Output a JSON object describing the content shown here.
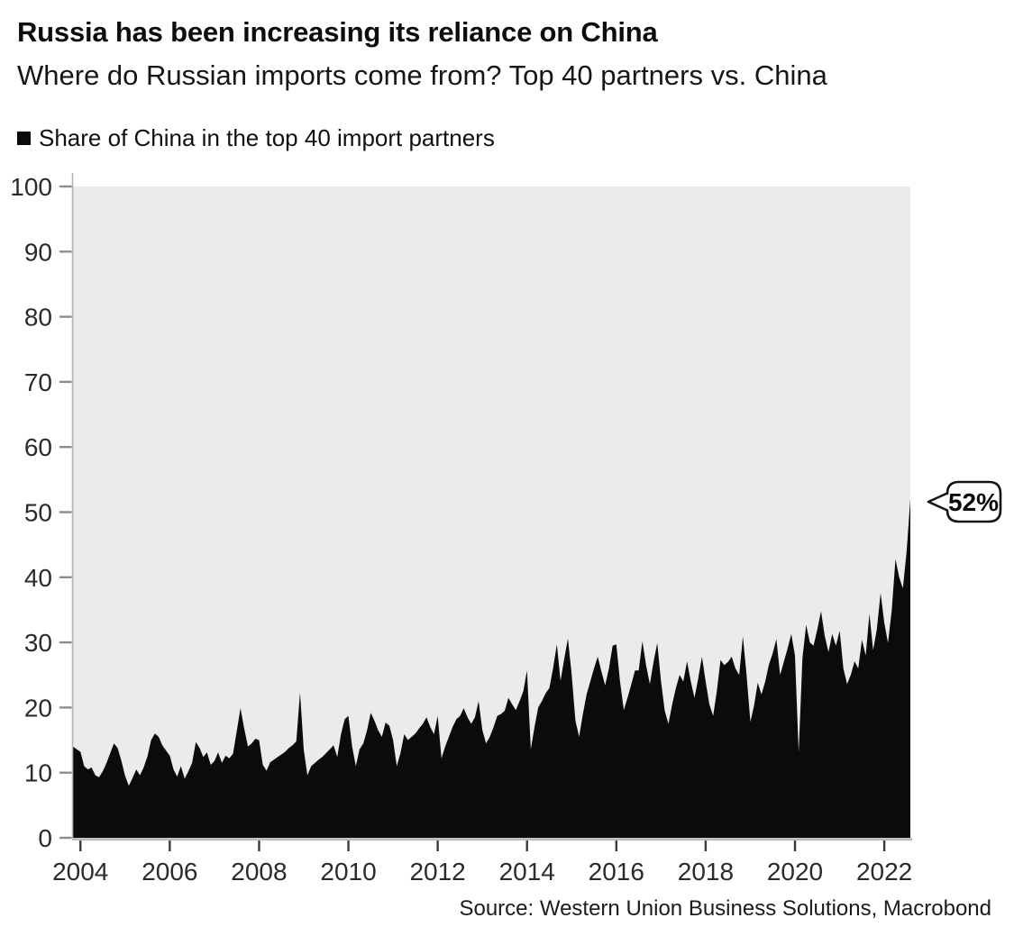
{
  "header": {
    "title": "Russia has been increasing its reliance on China",
    "subtitle": "Where do Russian imports come from? Top 40 partners vs. China"
  },
  "legend": {
    "label": "Share of China in the top 40 import partners"
  },
  "callout": {
    "value": "52%"
  },
  "source": {
    "text": "Source: Western Union Business Solutions, Macrobond"
  },
  "chart_data": {
    "type": "area",
    "title": "Russia has been increasing its reliance on China",
    "subtitle": "Where do Russian imports come from? Top 40 partners vs. China",
    "xlabel": "",
    "ylabel": "",
    "unit": "%",
    "ylim": [
      0,
      100
    ],
    "yticks": [
      0,
      10,
      20,
      30,
      40,
      50,
      60,
      70,
      80,
      90,
      100
    ],
    "xticks": [
      2004,
      2006,
      2008,
      2010,
      2012,
      2014,
      2016,
      2018,
      2020,
      2022
    ],
    "grid": false,
    "legend_position": "top-left",
    "plot_bg_color": "#ebebeb",
    "area_color": "#0b0b0b",
    "annotation": {
      "text": "52%",
      "at": "2022-08"
    },
    "series": [
      {
        "name": "Share of China in the top 40 import partners",
        "start": "2003-11",
        "end": "2022-08",
        "frequency": "monthly",
        "values": [
          14.0,
          13.6,
          13.2,
          11.0,
          10.5,
          10.8,
          9.6,
          9.3,
          10.2,
          11.5,
          13.0,
          14.5,
          13.8,
          11.8,
          9.5,
          8.0,
          9.2,
          10.5,
          9.6,
          10.8,
          12.5,
          15.0,
          16.0,
          15.5,
          14.2,
          13.4,
          12.6,
          10.5,
          9.4,
          11.0,
          9.1,
          10.2,
          11.5,
          14.7,
          13.8,
          12.4,
          13.1,
          11.2,
          11.8,
          13.1,
          11.5,
          12.6,
          12.2,
          12.9,
          16.4,
          19.9,
          16.8,
          14.0,
          14.5,
          15.2,
          15.0,
          11.2,
          10.3,
          11.6,
          12.0,
          12.4,
          12.8,
          13.2,
          13.8,
          14.2,
          14.8,
          22.3,
          13.5,
          9.6,
          11.0,
          11.5,
          12.0,
          12.4,
          13.0,
          13.6,
          14.2,
          12.4,
          15.9,
          18.2,
          18.7,
          14.0,
          11.0,
          13.6,
          14.5,
          16.5,
          19.2,
          18.0,
          16.5,
          15.5,
          17.7,
          17.2,
          15.0,
          11.0,
          13.0,
          15.9,
          15.0,
          15.5,
          16.0,
          16.8,
          17.5,
          18.5,
          17.0,
          15.9,
          18.7,
          12.2,
          14.0,
          15.5,
          17.0,
          18.2,
          18.7,
          19.9,
          18.5,
          17.5,
          18.5,
          21.0,
          16.5,
          14.5,
          15.5,
          17.0,
          18.7,
          19.0,
          19.5,
          21.5,
          20.5,
          19.6,
          21.0,
          22.5,
          25.7,
          13.6,
          17.0,
          20.0,
          21.0,
          22.2,
          23.0,
          26.0,
          29.7,
          24.1,
          27.5,
          30.6,
          25.0,
          18.0,
          15.5,
          19.0,
          22.0,
          24.0,
          26.0,
          27.8,
          25.5,
          23.4,
          26.0,
          29.5,
          29.7,
          24.0,
          19.6,
          21.5,
          23.5,
          25.7,
          25.7,
          30.2,
          26.5,
          23.6,
          27.0,
          29.9,
          24.0,
          19.5,
          17.5,
          20.5,
          23.0,
          25.0,
          24.0,
          27.1,
          24.0,
          21.5,
          24.5,
          27.8,
          24.0,
          20.5,
          18.7,
          22.5,
          27.3,
          26.5,
          27.0,
          27.8,
          26.0,
          25.0,
          30.9,
          25.0,
          17.8,
          20.3,
          23.8,
          22.0,
          24.0,
          26.6,
          28.3,
          30.5,
          25.0,
          27.0,
          29.0,
          31.3,
          28.0,
          13.1,
          27.6,
          32.7,
          30.0,
          29.5,
          32.0,
          34.8,
          31.0,
          28.5,
          31.3,
          29.5,
          31.8,
          26.0,
          23.6,
          25.0,
          27.1,
          26.0,
          30.4,
          28.0,
          34.4,
          28.8,
          32.0,
          37.6,
          33.0,
          29.9,
          35.0,
          42.8,
          40.0,
          38.3,
          44.0,
          52.0
        ]
      }
    ]
  }
}
